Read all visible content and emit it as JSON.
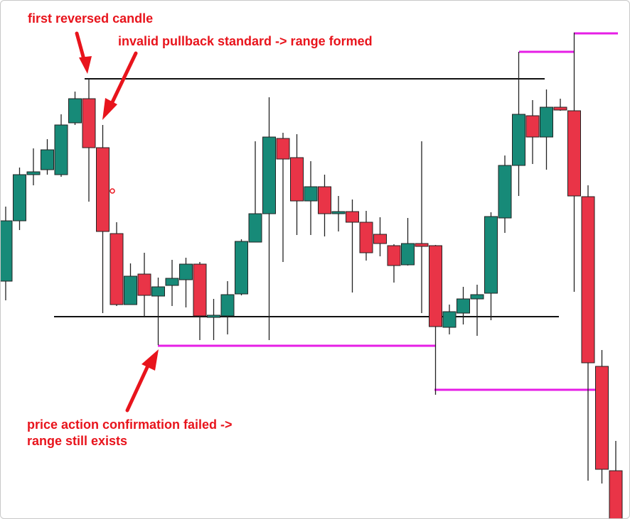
{
  "chart_data": {
    "type": "candlestick",
    "annotations": [
      "first reversed candle",
      "invalid pullback standard -> range formed",
      "price action confirmation failed ->",
      "range still exists"
    ],
    "up_color": "#178a78",
    "down_color": "#e93447",
    "ylim": [
      0,
      731
    ],
    "open": [
      336,
      421,
      486,
      493,
      486,
      559,
      593,
      524,
      403,
      303,
      346,
      315,
      330,
      338,
      360,
      285,
      287,
      318,
      391,
      431,
      537,
      510,
      449,
      469,
      431,
      434,
      419,
      402,
      386,
      359,
      389,
      386,
      271,
      291,
      311,
      319,
      425,
      499,
      569,
      539,
      581,
      576,
      455,
      216,
      69
    ],
    "high": [
      441,
      496,
      523,
      536,
      571,
      603,
      621,
      556,
      419,
      361,
      376,
      341,
      366,
      369,
      363,
      311,
      336,
      395,
      533,
      595,
      545,
      543,
      505,
      486,
      456,
      451,
      435,
      426,
      388,
      425,
      533,
      387,
      303,
      328,
      331,
      433,
      513,
      659,
      591,
      606,
      593,
      686,
      471,
      239,
      111
    ],
    "low": [
      309,
      408,
      471,
      486,
      483,
      556,
      448,
      291,
      301,
      303,
      286,
      246,
      301,
      299,
      253,
      253,
      261,
      316,
      391,
      253,
      363,
      401,
      401,
      399,
      406,
      320,
      365,
      371,
      334,
      358,
      291,
      176,
      261,
      275,
      259,
      281,
      404,
      456,
      501,
      493,
      576,
      321,
      55,
      51,
      0
    ],
    "close": [
      421,
      486,
      490,
      521,
      556,
      593,
      524,
      406,
      303,
      343,
      316,
      328,
      340,
      360,
      287,
      288,
      317,
      392,
      431,
      539,
      508,
      449,
      469,
      431,
      434,
      419,
      376,
      389,
      358,
      389,
      385,
      272,
      293,
      311,
      317,
      427,
      499,
      571,
      539,
      581,
      577,
      456,
      221,
      71,
      0
    ]
  }
}
